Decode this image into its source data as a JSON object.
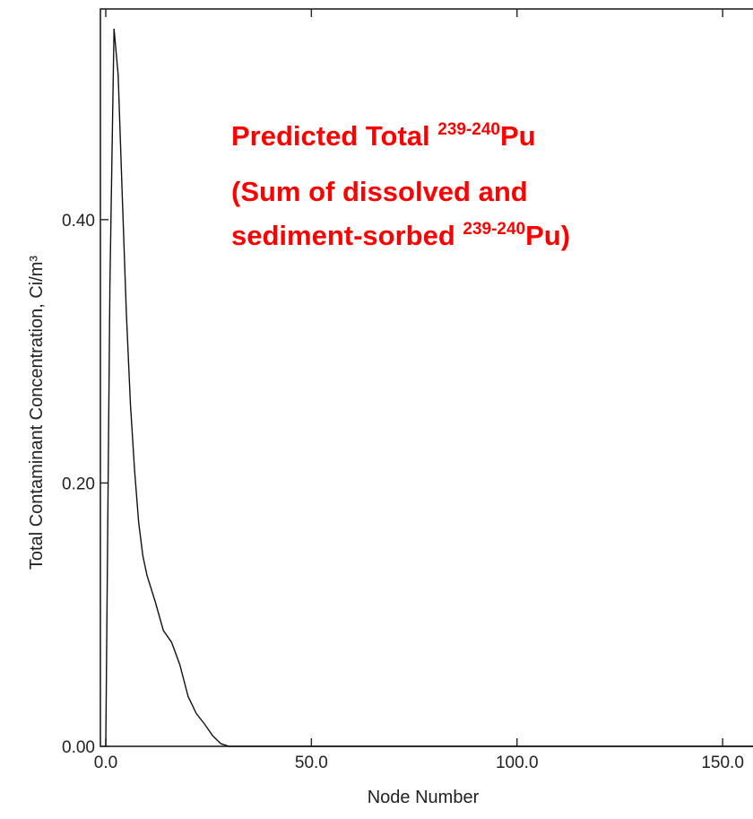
{
  "chart_data": {
    "type": "line",
    "ylabel": "Total Contaminant Concentration, Ci/m³",
    "xlabel": "Node Number",
    "xlim": [
      0,
      160
    ],
    "ylim": [
      0,
      0.56
    ],
    "x_ticks": [
      {
        "value": 0,
        "label": "0.0"
      },
      {
        "value": 50,
        "label": "50.0"
      },
      {
        "value": 100,
        "label": "100.0"
      },
      {
        "value": 150,
        "label": "150.0"
      }
    ],
    "y_ticks": [
      {
        "value": 0,
        "label": "0.00"
      },
      {
        "value": 0.2,
        "label": "0.20"
      },
      {
        "value": 0.4,
        "label": "0.40"
      }
    ],
    "grid": false,
    "series": [
      {
        "color": "#111111",
        "x": [
          0,
          1,
          2,
          3,
          4,
          5,
          6,
          7,
          8,
          9,
          10,
          12,
          14,
          16,
          18,
          20,
          22,
          24,
          26,
          28,
          30,
          40,
          60,
          80,
          100,
          120,
          140,
          160
        ],
        "y": [
          0.0,
          0.35,
          0.545,
          0.51,
          0.42,
          0.33,
          0.26,
          0.21,
          0.17,
          0.145,
          0.13,
          0.11,
          0.088,
          0.079,
          0.062,
          0.038,
          0.025,
          0.017,
          0.008,
          0.002,
          0.0,
          0.0,
          0.0,
          0.0,
          0.0,
          0.0,
          0.0,
          0.0
        ]
      }
    ],
    "annotation": {
      "line1_prefix": "Predicted Total ",
      "line1_sup": "239-240",
      "line1_suffix": "Pu",
      "line2": "(Sum of dissolved and",
      "line3_prefix": "sediment-sorbed ",
      "line3_sup": "239-240",
      "line3_suffix": "Pu)"
    }
  }
}
